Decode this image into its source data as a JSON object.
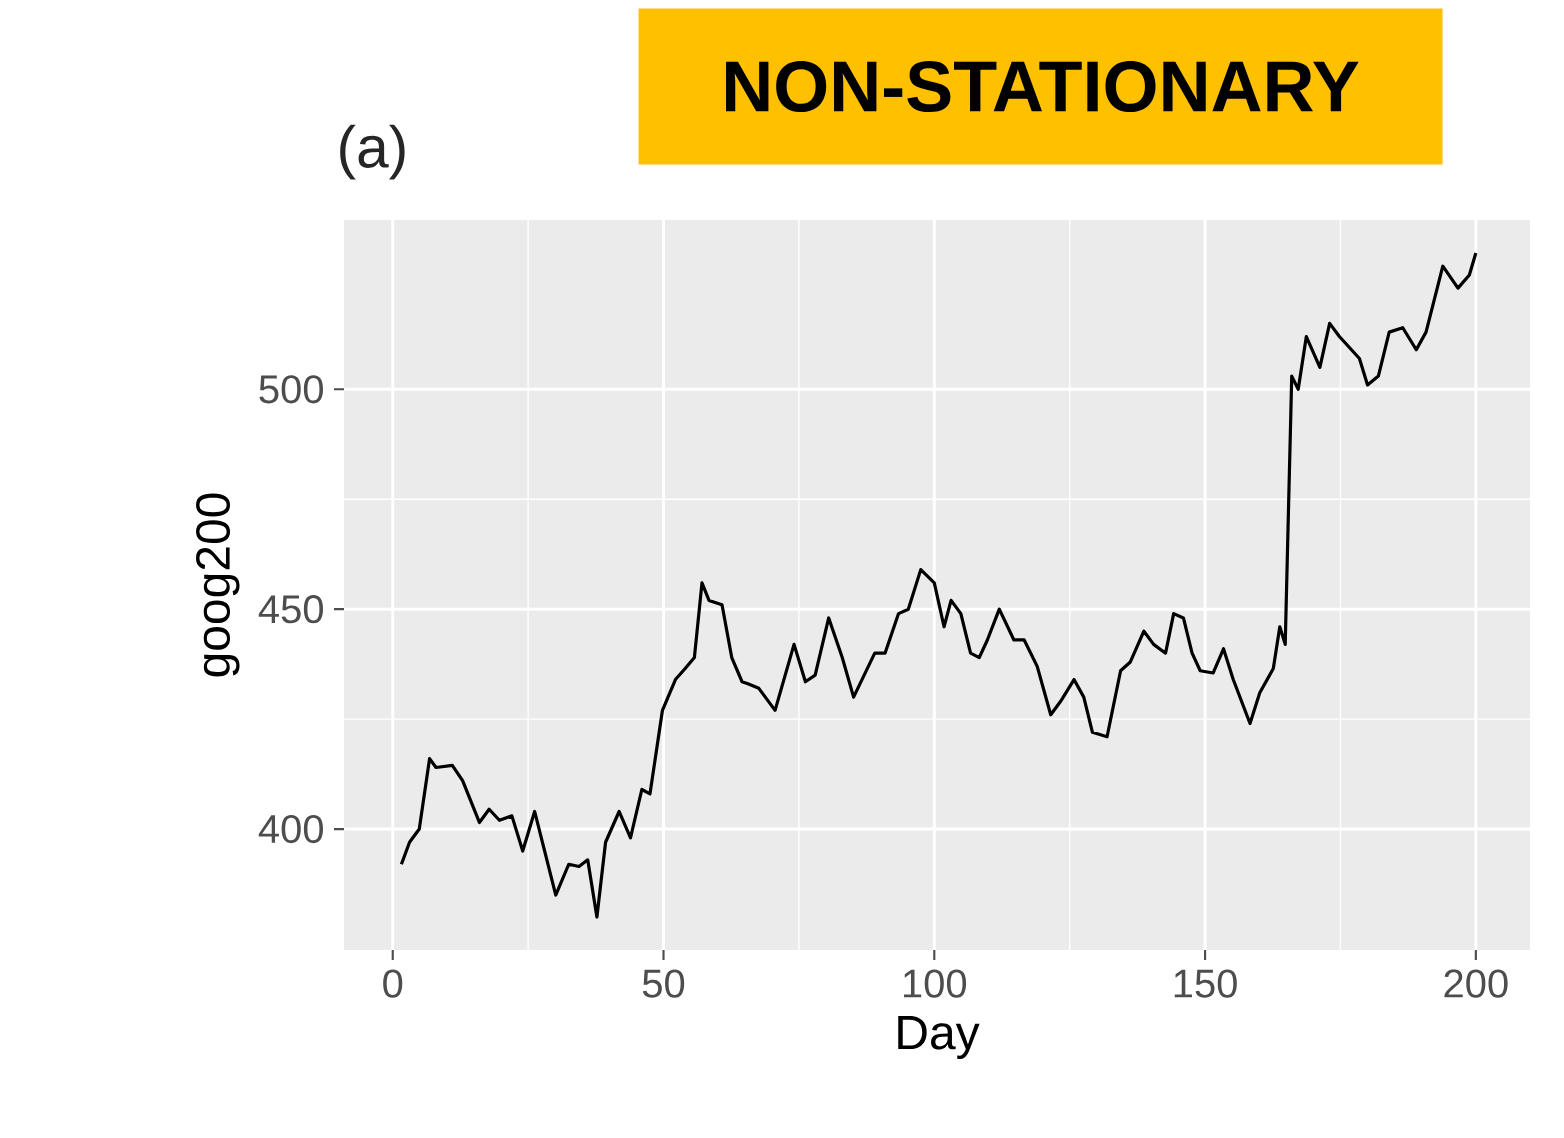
{
  "chart_data": {
    "type": "line",
    "title": "(a)",
    "xlabel": "Day",
    "ylabel": "goog200",
    "annotations": [
      "NON-STATIONARY"
    ],
    "x": [
      1.6,
      3.1,
      4.9,
      6.8,
      8,
      11,
      12.9,
      16,
      17.8,
      19.7,
      22,
      24,
      26.2,
      30.1,
      32.5,
      34.4,
      36,
      37.7,
      39.3,
      41.8,
      43.9,
      46,
      47.5,
      49.8,
      52.2,
      54,
      55.7,
      57.1,
      58.4,
      60.8,
      62.6,
      64.5,
      65.7,
      67.6,
      70.6,
      74.1,
      76.2,
      78,
      80.5,
      83,
      85.1,
      89,
      90.9,
      93.4,
      95.2,
      97.5,
      100,
      101.8,
      103.1,
      104.9,
      106.7,
      108.3,
      109.8,
      112,
      114.7,
      116.6,
      119,
      121.5,
      123.3,
      125.8,
      127.6,
      129.2,
      131.9,
      134.4,
      136.2,
      138.7,
      140.5,
      142.7,
      144.2,
      146,
      147.6,
      149.1,
      151.5,
      153.4,
      155.2,
      158.3,
      160.1,
      162.6,
      163.8,
      164.8,
      166,
      167.2,
      168.7,
      171.2,
      173,
      174.8,
      178.5,
      180,
      182,
      184,
      186.5,
      189,
      190.8,
      193.9,
      196.7,
      198.8,
      200
    ],
    "series": [
      {
        "color": "#000000",
        "values": [
          392,
          397,
          400,
          416,
          414,
          414.5,
          411,
          401.5,
          404.5,
          402,
          403,
          395,
          404,
          385,
          392,
          391.5,
          393,
          380,
          397,
          404,
          398,
          409,
          408,
          427,
          434,
          436.5,
          439,
          456,
          452,
          451,
          439,
          433.5,
          433,
          432,
          427,
          442,
          433.5,
          435,
          448,
          439,
          430,
          440,
          440,
          449,
          450,
          459,
          456,
          446,
          452,
          449,
          440,
          439,
          443,
          450,
          443,
          443,
          437,
          426,
          429,
          434,
          430,
          422,
          421,
          436,
          438,
          445,
          442,
          440,
          449,
          448,
          440,
          436,
          435.5,
          441,
          434,
          424,
          431,
          436.5,
          446,
          442,
          503,
          500,
          512,
          505,
          515,
          512,
          507,
          501,
          503,
          513,
          514,
          509,
          513,
          528,
          523,
          526,
          531
        ]
      }
    ],
    "xlim": [
      -9,
      210
    ],
    "ylim": [
      372.5,
      538.5
    ],
    "xticks": [
      0,
      50,
      100,
      150,
      200
    ],
    "yticks": [
      400,
      450,
      500
    ],
    "grid": true,
    "line_style": "solid"
  }
}
